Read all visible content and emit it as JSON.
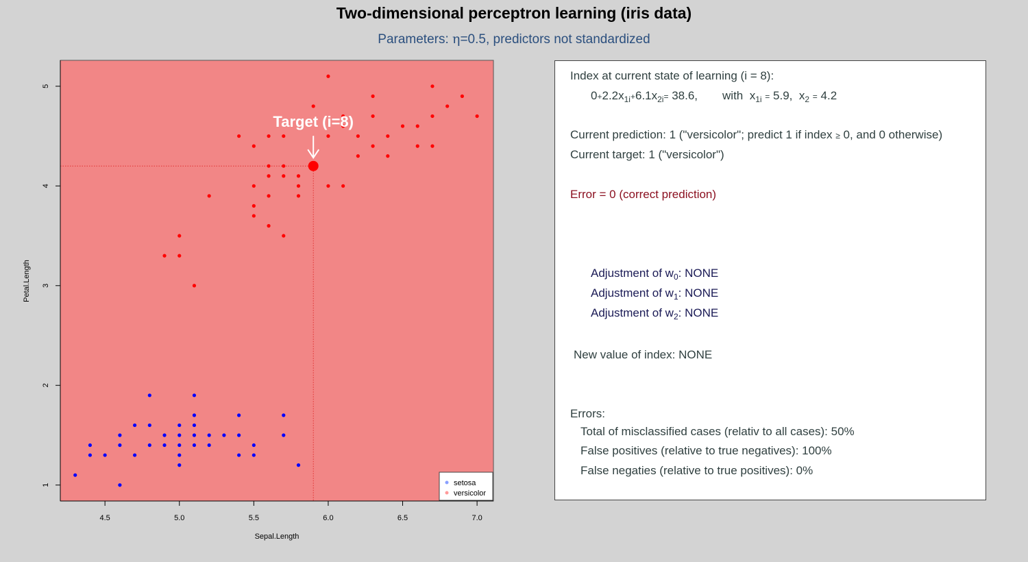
{
  "title": "Two-dimensional perceptron learning (iris data)",
  "subtitle_prefix": "Parameters: ",
  "subtitle_eta": "η",
  "subtitle_rest": "=0.5, predictors not standardized",
  "colors": {
    "background": "#d3d3d3",
    "plot_background": "#f28686",
    "setosa": "#0000ff",
    "versicolor": "#ff0000",
    "legend_setosa": "#8aa0ff",
    "legend_versicolor": "#ff9a9a",
    "subtitle": "#2b4f7e",
    "error_text": "#8b1020"
  },
  "chart_data": {
    "type": "scatter",
    "xlabel": "Sepal.Length",
    "ylabel": "Petal.Length",
    "xlim": [
      4.2,
      7.11
    ],
    "ylim": [
      0.84,
      5.26
    ],
    "xticks": [
      "4.5",
      "5.0",
      "5.5",
      "6.0",
      "6.5",
      "7.0"
    ],
    "yticks": [
      "1",
      "2",
      "3",
      "4",
      "5"
    ],
    "grid": false,
    "legend_position": "bottom-right",
    "series": [
      {
        "name": "setosa",
        "color": "#0000ff",
        "points": [
          [
            4.3,
            1.1
          ],
          [
            4.4,
            1.3
          ],
          [
            4.4,
            1.4
          ],
          [
            4.5,
            1.3
          ],
          [
            4.6,
            1.0
          ],
          [
            4.6,
            1.4
          ],
          [
            4.6,
            1.5
          ],
          [
            4.7,
            1.3
          ],
          [
            4.7,
            1.6
          ],
          [
            4.8,
            1.4
          ],
          [
            4.8,
            1.6
          ],
          [
            4.8,
            1.9
          ],
          [
            4.9,
            1.4
          ],
          [
            4.9,
            1.5
          ],
          [
            5.0,
            1.2
          ],
          [
            5.0,
            1.3
          ],
          [
            5.0,
            1.4
          ],
          [
            5.0,
            1.5
          ],
          [
            5.0,
            1.6
          ],
          [
            5.1,
            1.4
          ],
          [
            5.1,
            1.5
          ],
          [
            5.1,
            1.6
          ],
          [
            5.1,
            1.7
          ],
          [
            5.1,
            1.9
          ],
          [
            5.2,
            1.4
          ],
          [
            5.2,
            1.5
          ],
          [
            5.3,
            1.5
          ],
          [
            5.4,
            1.3
          ],
          [
            5.4,
            1.5
          ],
          [
            5.4,
            1.7
          ],
          [
            5.5,
            1.3
          ],
          [
            5.5,
            1.4
          ],
          [
            5.7,
            1.5
          ],
          [
            5.7,
            1.7
          ],
          [
            5.8,
            1.2
          ]
        ]
      },
      {
        "name": "versicolor",
        "color": "#ff0000",
        "points": [
          [
            4.9,
            3.3
          ],
          [
            5.0,
            3.3
          ],
          [
            5.0,
            3.5
          ],
          [
            5.1,
            3.0
          ],
          [
            5.2,
            3.9
          ],
          [
            5.4,
            4.5
          ],
          [
            5.5,
            3.7
          ],
          [
            5.5,
            3.8
          ],
          [
            5.5,
            4.0
          ],
          [
            5.5,
            4.4
          ],
          [
            5.6,
            3.6
          ],
          [
            5.6,
            3.9
          ],
          [
            5.6,
            4.1
          ],
          [
            5.6,
            4.2
          ],
          [
            5.6,
            4.5
          ],
          [
            5.7,
            3.5
          ],
          [
            5.7,
            4.1
          ],
          [
            5.7,
            4.2
          ],
          [
            5.7,
            4.5
          ],
          [
            5.8,
            3.9
          ],
          [
            5.8,
            4.0
          ],
          [
            5.8,
            4.1
          ],
          [
            5.9,
            4.8
          ],
          [
            6.0,
            4.0
          ],
          [
            6.0,
            4.5
          ],
          [
            6.0,
            5.1
          ],
          [
            6.1,
            4.0
          ],
          [
            6.1,
            4.6
          ],
          [
            6.1,
            4.7
          ],
          [
            6.2,
            4.3
          ],
          [
            6.2,
            4.5
          ],
          [
            6.3,
            4.4
          ],
          [
            6.3,
            4.7
          ],
          [
            6.3,
            4.9
          ],
          [
            6.4,
            4.3
          ],
          [
            6.4,
            4.5
          ],
          [
            6.5,
            4.6
          ],
          [
            6.6,
            4.4
          ],
          [
            6.6,
            4.6
          ],
          [
            6.7,
            4.4
          ],
          [
            6.7,
            4.7
          ],
          [
            6.7,
            5.0
          ],
          [
            6.8,
            4.8
          ],
          [
            6.9,
            4.9
          ],
          [
            7.0,
            4.7
          ]
        ]
      }
    ],
    "target": {
      "label": "Target (i=8)",
      "x": 5.9,
      "y": 4.2
    }
  },
  "info": {
    "index_header": "Index at current state of learning (i = 8):",
    "eq_w0": "0",
    "eq_plus1": "+",
    "eq_w1": "2.2x",
    "eq_sub1": "1i",
    "eq_plus2": "+",
    "eq_w2": "6.1x",
    "eq_sub2": "2i",
    "eq_eq": "=",
    "eq_value": "38.6,",
    "eq_with": "with",
    "eq_x1": "x",
    "eq_x1_sub": "1i",
    "eq_x1_eq": "=",
    "eq_x1_val": "5.9,",
    "eq_x2": "x",
    "eq_x2_sub": "2",
    "eq_x2_eq": "=",
    "eq_x2_val": "4.2",
    "prediction_pre": "Current prediction: 1 (\"versicolor\"; predict 1 if index",
    "prediction_geq": "≥",
    "prediction_post": "0, and 0 otherwise)",
    "target": "Current target: 1 (\"versicolor\")",
    "error": "Error = 0 (correct prediction)",
    "adjustments": [
      {
        "label": "Adjustment of w",
        "sub": "0",
        "value": ": NONE"
      },
      {
        "label": "Adjustment of w",
        "sub": "1",
        "value": ": NONE"
      },
      {
        "label": "Adjustment of w",
        "sub": "2",
        "value": ": NONE"
      }
    ],
    "new_index": "New value of index: NONE",
    "errors_header": "Errors:",
    "total_misclassified": "Total of misclassified cases (relativ to all cases): 50%",
    "false_positives": "False positives (relative to true negatives): 100%",
    "false_negatives": "False negaties (relative to true positives): 0%"
  }
}
